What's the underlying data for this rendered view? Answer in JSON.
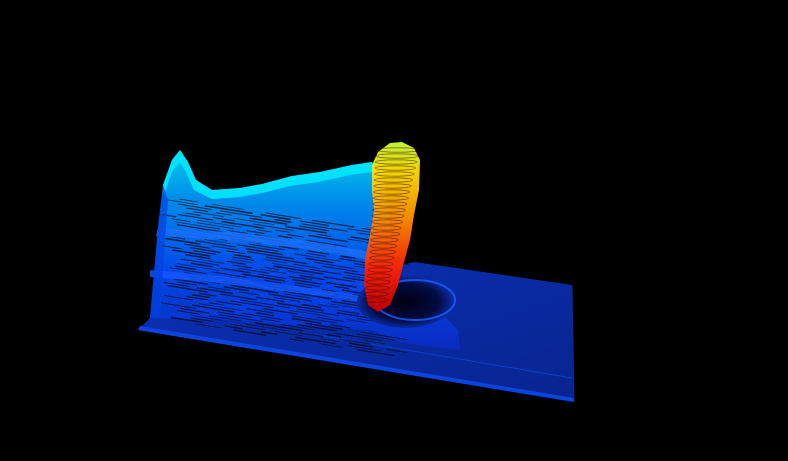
{
  "scene": {
    "kind": "3d-surface-render",
    "background_color": "#000000",
    "colormap": "jet",
    "colormap_stops": [
      "#00008f",
      "#0000ff",
      "#0080ff",
      "#00ffff",
      "#80ff80",
      "#ffff00",
      "#ff8000",
      "#ff0000"
    ],
    "base_plane_color": "#0a2a9a",
    "base_edge_color": "#0b3fd0",
    "wireframe": true,
    "axes_visible": false,
    "text_visible": false
  }
}
